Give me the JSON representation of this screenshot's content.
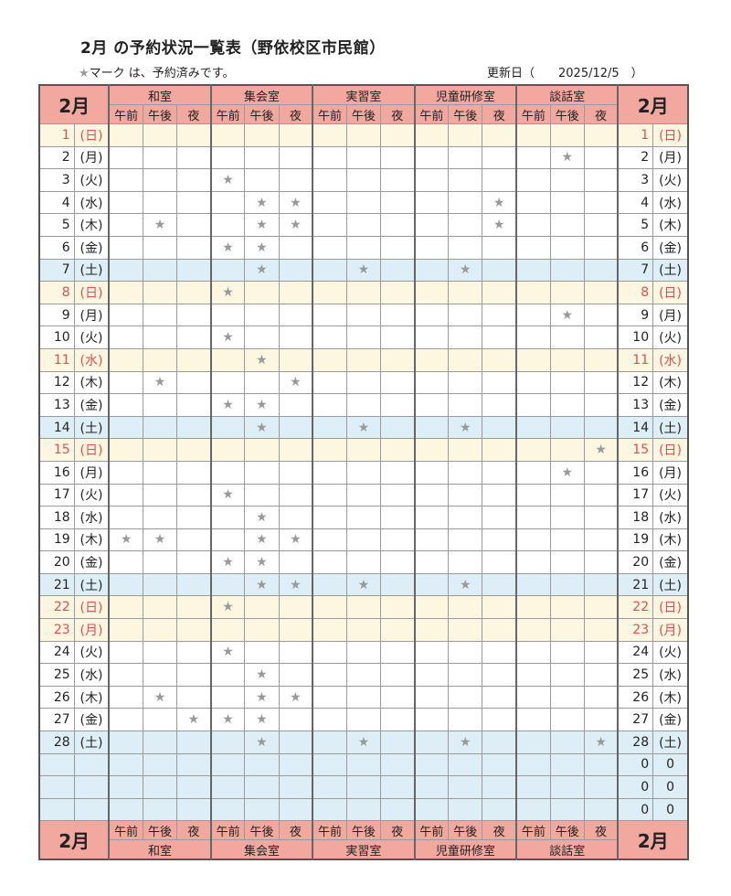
{
  "title": "2月 の予約状況一覧表（野依校区市民館）",
  "note": "マーク は、予約済みです。",
  "note_mark": "★",
  "updated_text": "更新日（　　2025/12/5　）",
  "month_label": "2月",
  "rooms": [
    "和室",
    "集会室",
    "実習室",
    "児童研修室",
    "談話室"
  ],
  "slots": [
    "午前",
    "午後",
    "夜"
  ],
  "star": "★",
  "colors": {
    "header_bg": "#f2a79f",
    "sunday_bg": "#fdf6e0",
    "saturday_bg": "#ddeef6",
    "holiday_text": "#e05050",
    "star": "#999999"
  },
  "days": [
    {
      "d": "1",
      "w": "(日)",
      "type": "sun",
      "marks": []
    },
    {
      "d": "2",
      "w": "(月)",
      "type": "",
      "marks": [
        13
      ]
    },
    {
      "d": "3",
      "w": "(火)",
      "type": "",
      "marks": [
        3
      ]
    },
    {
      "d": "4",
      "w": "(水)",
      "type": "",
      "marks": [
        4,
        5,
        11
      ]
    },
    {
      "d": "5",
      "w": "(木)",
      "type": "",
      "marks": [
        1,
        4,
        5,
        11
      ]
    },
    {
      "d": "6",
      "w": "(金)",
      "type": "",
      "marks": [
        3,
        4
      ]
    },
    {
      "d": "7",
      "w": "(土)",
      "type": "sat",
      "marks": [
        4,
        7,
        10
      ]
    },
    {
      "d": "8",
      "w": "(日)",
      "type": "sun",
      "marks": [
        3
      ]
    },
    {
      "d": "9",
      "w": "(月)",
      "type": "",
      "marks": [
        13
      ]
    },
    {
      "d": "10",
      "w": "(火)",
      "type": "",
      "marks": [
        3
      ]
    },
    {
      "d": "11",
      "w": "(水)",
      "type": "hol",
      "marks": [
        4
      ]
    },
    {
      "d": "12",
      "w": "(木)",
      "type": "",
      "marks": [
        1,
        5
      ]
    },
    {
      "d": "13",
      "w": "(金)",
      "type": "",
      "marks": [
        3,
        4
      ]
    },
    {
      "d": "14",
      "w": "(土)",
      "type": "sat",
      "marks": [
        4,
        7,
        10
      ]
    },
    {
      "d": "15",
      "w": "(日)",
      "type": "sun",
      "marks": [
        14
      ]
    },
    {
      "d": "16",
      "w": "(月)",
      "type": "",
      "marks": [
        13
      ]
    },
    {
      "d": "17",
      "w": "(火)",
      "type": "",
      "marks": [
        3
      ]
    },
    {
      "d": "18",
      "w": "(水)",
      "type": "",
      "marks": [
        4
      ]
    },
    {
      "d": "19",
      "w": "(木)",
      "type": "",
      "marks": [
        0,
        1,
        4,
        5
      ]
    },
    {
      "d": "20",
      "w": "(金)",
      "type": "",
      "marks": [
        3,
        4
      ]
    },
    {
      "d": "21",
      "w": "(土)",
      "type": "sat",
      "marks": [
        4,
        5,
        7,
        10
      ]
    },
    {
      "d": "22",
      "w": "(日)",
      "type": "sun",
      "marks": [
        3
      ]
    },
    {
      "d": "23",
      "w": "(月)",
      "type": "hol",
      "marks": []
    },
    {
      "d": "24",
      "w": "(火)",
      "type": "",
      "marks": [
        3
      ]
    },
    {
      "d": "25",
      "w": "(水)",
      "type": "",
      "marks": [
        4
      ]
    },
    {
      "d": "26",
      "w": "(木)",
      "type": "",
      "marks": [
        1,
        4,
        5
      ]
    },
    {
      "d": "27",
      "w": "(金)",
      "type": "",
      "marks": [
        2,
        3,
        4
      ]
    },
    {
      "d": "28",
      "w": "(土)",
      "type": "sat",
      "marks": [
        4,
        7,
        10,
        14
      ]
    },
    {
      "d": "",
      "w": "",
      "type": "blank",
      "marks": [],
      "right_d": "0",
      "right_w": "0"
    },
    {
      "d": "",
      "w": "",
      "type": "blank",
      "marks": [],
      "right_d": "0",
      "right_w": "0"
    },
    {
      "d": "",
      "w": "",
      "type": "blank",
      "marks": [],
      "right_d": "0",
      "right_w": "0"
    }
  ]
}
